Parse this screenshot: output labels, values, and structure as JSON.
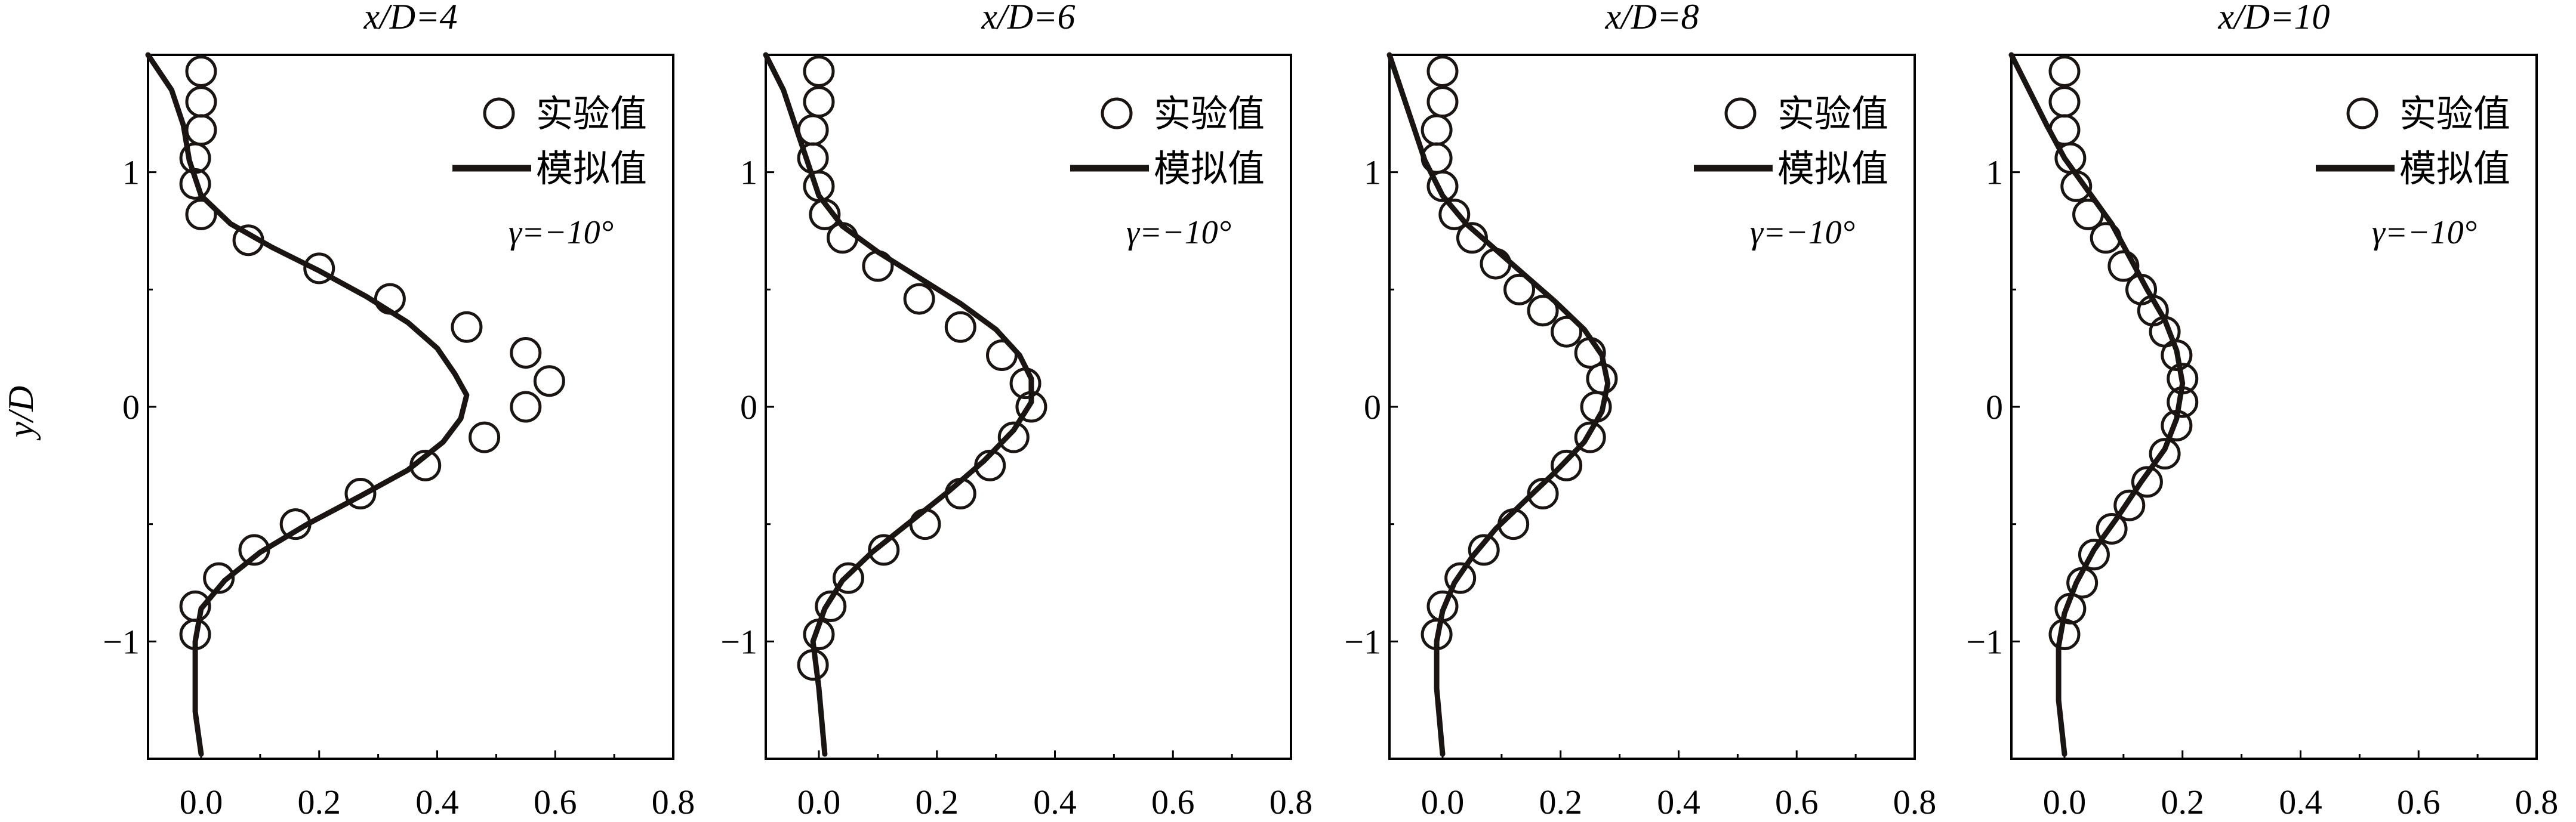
{
  "chart_data": {
    "type": "scatter",
    "ylabel": "y/D",
    "xlim": [
      -0.09,
      0.8
    ],
    "ylim": [
      -1.5,
      1.5
    ],
    "xticks": [
      "0.0",
      "0.2",
      "0.4",
      "0.6",
      "0.8"
    ],
    "yticks": [
      "−1",
      "0",
      "1"
    ],
    "grid": false,
    "legend_position": "top-right",
    "legend": {
      "experiment": "实验值",
      "simulation": "模拟值"
    },
    "annotation": "γ=−10°",
    "panels": [
      {
        "title": "x/D=4",
        "experiment": {
          "x": [
            0.0,
            0.0,
            0.0,
            -0.01,
            -0.01,
            0.0,
            0.08,
            0.2,
            0.32,
            0.45,
            0.55,
            0.59,
            0.55,
            0.48,
            0.38,
            0.27,
            0.16,
            0.09,
            0.03,
            -0.01,
            -0.01
          ],
          "y": [
            1.43,
            1.3,
            1.18,
            1.06,
            0.95,
            0.82,
            0.71,
            0.59,
            0.46,
            0.34,
            0.23,
            0.11,
            0.0,
            -0.13,
            -0.25,
            -0.37,
            -0.5,
            -0.61,
            -0.73,
            -0.85,
            -0.97
          ]
        },
        "simulation": {
          "x": [
            -0.09,
            -0.05,
            -0.03,
            -0.02,
            0.0,
            0.05,
            0.12,
            0.2,
            0.28,
            0.35,
            0.4,
            0.43,
            0.45,
            0.44,
            0.41,
            0.35,
            0.27,
            0.18,
            0.1,
            0.04,
            0.0,
            -0.01,
            -0.01,
            -0.01,
            0.0
          ],
          "y": [
            1.5,
            1.35,
            1.2,
            1.05,
            0.9,
            0.78,
            0.68,
            0.58,
            0.47,
            0.36,
            0.25,
            0.14,
            0.05,
            -0.05,
            -0.15,
            -0.27,
            -0.38,
            -0.5,
            -0.62,
            -0.74,
            -0.86,
            -1.0,
            -1.15,
            -1.3,
            -1.48
          ]
        }
      },
      {
        "title": "x/D=6",
        "experiment": {
          "x": [
            0.0,
            0.0,
            -0.01,
            -0.01,
            0.0,
            0.01,
            0.04,
            0.1,
            0.17,
            0.24,
            0.31,
            0.35,
            0.36,
            0.33,
            0.29,
            0.24,
            0.18,
            0.11,
            0.05,
            0.02,
            0.0,
            -0.01
          ],
          "y": [
            1.43,
            1.3,
            1.18,
            1.06,
            0.94,
            0.82,
            0.72,
            0.6,
            0.46,
            0.34,
            0.22,
            0.1,
            0.0,
            -0.13,
            -0.25,
            -0.37,
            -0.5,
            -0.61,
            -0.73,
            -0.85,
            -0.97,
            -1.1
          ]
        },
        "simulation": {
          "x": [
            -0.09,
            -0.06,
            -0.04,
            -0.02,
            0.0,
            0.04,
            0.1,
            0.17,
            0.24,
            0.3,
            0.34,
            0.36,
            0.36,
            0.33,
            0.28,
            0.22,
            0.15,
            0.09,
            0.04,
            0.01,
            -0.01,
            0.0,
            0.01
          ],
          "y": [
            1.5,
            1.35,
            1.2,
            1.05,
            0.9,
            0.77,
            0.66,
            0.55,
            0.44,
            0.33,
            0.22,
            0.12,
            0.02,
            -0.1,
            -0.23,
            -0.36,
            -0.5,
            -0.62,
            -0.74,
            -0.86,
            -1.0,
            -1.2,
            -1.48
          ]
        }
      },
      {
        "title": "x/D=8",
        "experiment": {
          "x": [
            0.0,
            0.0,
            -0.01,
            -0.01,
            0.0,
            0.02,
            0.05,
            0.09,
            0.13,
            0.17,
            0.21,
            0.25,
            0.27,
            0.26,
            0.25,
            0.21,
            0.17,
            0.12,
            0.07,
            0.03,
            0.0,
            -0.01
          ],
          "y": [
            1.43,
            1.3,
            1.18,
            1.06,
            0.94,
            0.82,
            0.72,
            0.61,
            0.5,
            0.41,
            0.32,
            0.23,
            0.12,
            0.0,
            -0.13,
            -0.25,
            -0.37,
            -0.5,
            -0.61,
            -0.73,
            -0.85,
            -0.97
          ]
        },
        "simulation": {
          "x": [
            -0.09,
            -0.07,
            -0.05,
            -0.03,
            0.0,
            0.04,
            0.09,
            0.14,
            0.19,
            0.24,
            0.27,
            0.28,
            0.27,
            0.24,
            0.19,
            0.14,
            0.09,
            0.05,
            0.02,
            0.0,
            -0.01,
            -0.01,
            0.0
          ],
          "y": [
            1.5,
            1.35,
            1.2,
            1.05,
            0.9,
            0.78,
            0.67,
            0.56,
            0.45,
            0.33,
            0.22,
            0.1,
            -0.02,
            -0.15,
            -0.28,
            -0.4,
            -0.52,
            -0.64,
            -0.75,
            -0.87,
            -1.0,
            -1.2,
            -1.48
          ]
        }
      },
      {
        "title": "x/D=10",
        "experiment": {
          "x": [
            0.0,
            0.0,
            0.0,
            0.01,
            0.02,
            0.04,
            0.07,
            0.1,
            0.13,
            0.15,
            0.17,
            0.19,
            0.2,
            0.2,
            0.19,
            0.17,
            0.14,
            0.11,
            0.08,
            0.05,
            0.03,
            0.01,
            0.0
          ],
          "y": [
            1.43,
            1.3,
            1.18,
            1.06,
            0.94,
            0.82,
            0.72,
            0.6,
            0.5,
            0.41,
            0.32,
            0.22,
            0.12,
            0.02,
            -0.08,
            -0.2,
            -0.32,
            -0.42,
            -0.52,
            -0.63,
            -0.75,
            -0.86,
            -0.97
          ]
        },
        "simulation": {
          "x": [
            -0.09,
            -0.06,
            -0.03,
            0.0,
            0.04,
            0.08,
            0.11,
            0.14,
            0.17,
            0.19,
            0.2,
            0.19,
            0.17,
            0.13,
            0.09,
            0.05,
            0.02,
            0.0,
            -0.01,
            -0.01,
            0.0
          ],
          "y": [
            1.5,
            1.35,
            1.2,
            1.06,
            0.92,
            0.78,
            0.64,
            0.5,
            0.37,
            0.24,
            0.1,
            -0.05,
            -0.18,
            -0.32,
            -0.47,
            -0.61,
            -0.75,
            -0.88,
            -1.02,
            -1.25,
            -1.48
          ]
        }
      }
    ]
  }
}
